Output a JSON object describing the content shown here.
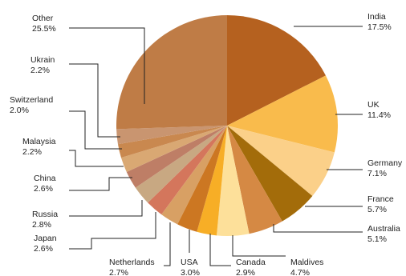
{
  "chart_data": {
    "type": "pie",
    "title": "",
    "start": "12 o'clock",
    "direction": "clockwise",
    "slices": [
      {
        "label": "India",
        "value": 17.5,
        "display": "17.5%",
        "color": "#B5611F"
      },
      {
        "label": "UK",
        "value": 11.4,
        "display": "11.4%",
        "color": "#F9BB4C"
      },
      {
        "label": "Germany",
        "value": 7.1,
        "display": "7.1%",
        "color": "#FBD089"
      },
      {
        "label": "France",
        "value": 5.7,
        "display": "5.7%",
        "color": "#A36C0A"
      },
      {
        "label": "Australia",
        "value": 5.1,
        "display": "5.1%",
        "color": "#D58944"
      },
      {
        "label": "Maldives",
        "value": 4.7,
        "display": "4.7%",
        "color": "#FDE09A"
      },
      {
        "label": "Canada",
        "value": 2.9,
        "display": "2.9%",
        "color": "#F7AE26"
      },
      {
        "label": "USA",
        "value": 3.0,
        "display": "3.0%",
        "color": "#CC7722"
      },
      {
        "label": "Netherlands",
        "value": 2.7,
        "display": "2.7%",
        "color": "#D8A064"
      },
      {
        "label": "Japan",
        "value": 2.6,
        "display": "2.6%",
        "color": "#D4765C"
      },
      {
        "label": "Russia",
        "value": 2.8,
        "display": "2.8%",
        "color": "#C8A882"
      },
      {
        "label": "China",
        "value": 2.6,
        "display": "2.6%",
        "color": "#BE7E66"
      },
      {
        "label": "Malaysia",
        "value": 2.2,
        "display": "2.2%",
        "color": "#D9A873"
      },
      {
        "label": "Switzerland",
        "value": 2.0,
        "display": "2.0%",
        "color": "#C9884F"
      },
      {
        "label": "Ukrain",
        "value": 2.2,
        "display": "2.2%",
        "color": "#C99570"
      },
      {
        "label": "Other",
        "value": 25.5,
        "display": "25.5%",
        "color": "#BF7C46"
      }
    ]
  }
}
